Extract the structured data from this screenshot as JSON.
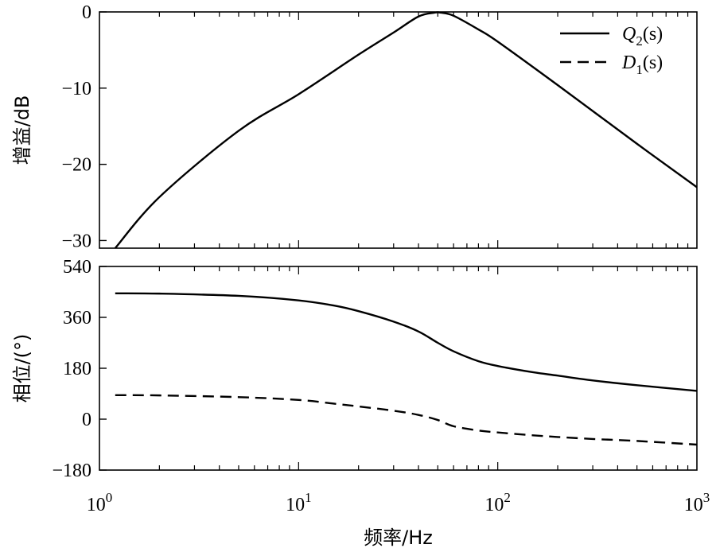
{
  "chart_data": [
    {
      "type": "line",
      "subplot": "top",
      "x_scale": "log",
      "xlim": [
        1,
        1000
      ],
      "ylim": [
        -31,
        0
      ],
      "ylabel": "增益/dB",
      "yticks": [
        0,
        -10,
        -20,
        -30
      ],
      "ytick_labels": [
        "0",
        "−10",
        "−20",
        "−30"
      ],
      "legend": "top-right",
      "series": [
        {
          "name": "Q2(s)",
          "legend_main": "Q",
          "legend_sub": "2",
          "legend_args": "(s)",
          "style": "solid",
          "x": [
            1.2,
            2,
            5,
            10,
            20,
            30,
            40,
            48,
            52,
            60,
            80,
            100,
            200,
            500,
            1000
          ],
          "y": [
            -31,
            -24.3,
            -15.6,
            -10.8,
            -5.6,
            -2.7,
            -0.6,
            -0.1,
            -0.1,
            -0.5,
            -2.3,
            -3.9,
            -9.6,
            -17.3,
            -23
          ]
        },
        {
          "name": "D1(s)",
          "legend_main": "D",
          "legend_sub": "1",
          "legend_args": "(s)",
          "style": "dashed",
          "x": [],
          "y": []
        }
      ]
    },
    {
      "type": "line",
      "subplot": "bottom",
      "x_scale": "log",
      "xlim": [
        1,
        1000
      ],
      "ylim": [
        -180,
        540
      ],
      "ylabel": "相位/(°)",
      "xlabel": "频率/Hz",
      "yticks": [
        540,
        360,
        180,
        0,
        -180
      ],
      "ytick_labels": [
        "540",
        "360",
        "180",
        "0",
        "−180"
      ],
      "xticks": [
        1,
        10,
        100,
        1000
      ],
      "xtick_base": "10",
      "xtick_exponents": [
        "0",
        "1",
        "2",
        "3"
      ],
      "grid": false,
      "series": [
        {
          "name": "Q2(s)",
          "style": "solid",
          "x": [
            1.2,
            2,
            5,
            10,
            15,
            20,
            30,
            40,
            50,
            60,
            80,
            100,
            150,
            200,
            300,
            500,
            1000
          ],
          "y": [
            445,
            444,
            436,
            420,
            402,
            382,
            345,
            310,
            270,
            240,
            205,
            188,
            166,
            154,
            137,
            120,
            100
          ]
        },
        {
          "name": "D1(s)",
          "style": "dashed",
          "x": [
            1.2,
            2,
            5,
            10,
            15,
            20,
            30,
            40,
            50,
            60,
            80,
            100,
            150,
            200,
            300,
            500,
            1000
          ],
          "y": [
            85,
            84,
            78,
            68,
            55,
            45,
            30,
            15,
            -3,
            -25,
            -40,
            -47,
            -57,
            -63,
            -70,
            -77,
            -90
          ]
        }
      ]
    }
  ]
}
